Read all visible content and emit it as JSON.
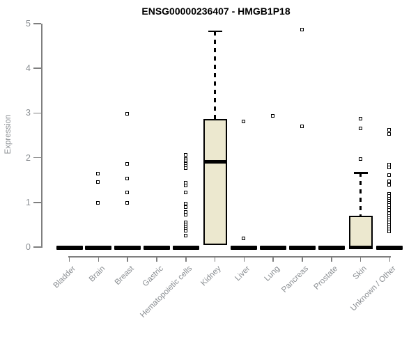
{
  "chart_data": {
    "type": "box",
    "title": "ENSG00000236407 - HMGB1P18",
    "ylabel": "Expression",
    "xlabel": "",
    "ylim": [
      0,
      5
    ],
    "yticks": [
      0,
      1,
      2,
      3,
      4,
      5
    ],
    "grid": false,
    "legend": "none",
    "box_fill": "#ece8cf",
    "box_border": "#000000",
    "axis_color": "#7f7f7f",
    "tick_label_color": "#8c9094",
    "categories": [
      {
        "label": "Bladder",
        "q1": 0,
        "median": 0,
        "q3": 0,
        "whisker_low": 0,
        "whisker_high": 0,
        "outliers": []
      },
      {
        "label": "Brain",
        "q1": 0,
        "median": 0,
        "q3": 0,
        "whisker_low": 0,
        "whisker_high": 0,
        "outliers": [
          1.63,
          1.45,
          0.98
        ]
      },
      {
        "label": "Breast",
        "q1": 0,
        "median": 0,
        "q3": 0,
        "whisker_low": 0,
        "whisker_high": 0,
        "outliers": [
          2.97,
          1.85,
          1.53,
          1.22,
          0.98
        ]
      },
      {
        "label": "Gastric",
        "q1": 0,
        "median": 0,
        "q3": 0,
        "whisker_low": 0,
        "whisker_high": 0,
        "outliers": []
      },
      {
        "label": "Hematopoietic cells",
        "q1": 0,
        "median": 0,
        "q3": 0,
        "whisker_low": 0,
        "whisker_high": 0,
        "outliers": [
          2.06,
          1.97,
          1.93,
          1.89,
          1.85,
          1.8,
          1.76,
          1.44,
          1.37,
          1.22,
          0.96,
          0.89,
          0.78,
          0.71,
          0.55,
          0.5,
          0.45,
          0.4,
          0.36,
          0.25
        ]
      },
      {
        "label": "Kidney",
        "q1": 0.05,
        "median": 1.91,
        "q3": 2.87,
        "whisker_low": 0.05,
        "whisker_high": 4.83,
        "outliers": []
      },
      {
        "label": "Liver",
        "q1": 0,
        "median": 0,
        "q3": 0,
        "whisker_low": 0,
        "whisker_high": 0,
        "outliers": [
          2.8,
          0.18
        ]
      },
      {
        "label": "Lung",
        "q1": 0,
        "median": 0,
        "q3": 0,
        "whisker_low": 0,
        "whisker_high": 0,
        "outliers": [
          2.93
        ]
      },
      {
        "label": "Pancreas",
        "q1": 0,
        "median": 0,
        "q3": 0,
        "whisker_low": 0,
        "whisker_high": 0,
        "outliers": [
          4.86,
          2.69
        ]
      },
      {
        "label": "Prostate",
        "q1": 0,
        "median": 0,
        "q3": 0,
        "whisker_low": 0,
        "whisker_high": 0,
        "outliers": []
      },
      {
        "label": "Skin",
        "q1": 0,
        "median": 0,
        "q3": 0.7,
        "whisker_low": 0,
        "whisker_high": 1.66,
        "outliers": [
          2.87,
          2.65,
          1.97
        ]
      },
      {
        "label": "Unknown / Other",
        "q1": 0,
        "median": 0,
        "q3": 0,
        "whisker_low": 0,
        "whisker_high": 0,
        "outliers": [
          2.62,
          2.53,
          1.84,
          1.78,
          1.6,
          1.46,
          1.38,
          1.18,
          1.13,
          1.08,
          1.03,
          0.98,
          0.93,
          0.88,
          0.83,
          0.74,
          0.69,
          0.64,
          0.59,
          0.54,
          0.49,
          0.44,
          0.39,
          0.35
        ]
      }
    ]
  }
}
